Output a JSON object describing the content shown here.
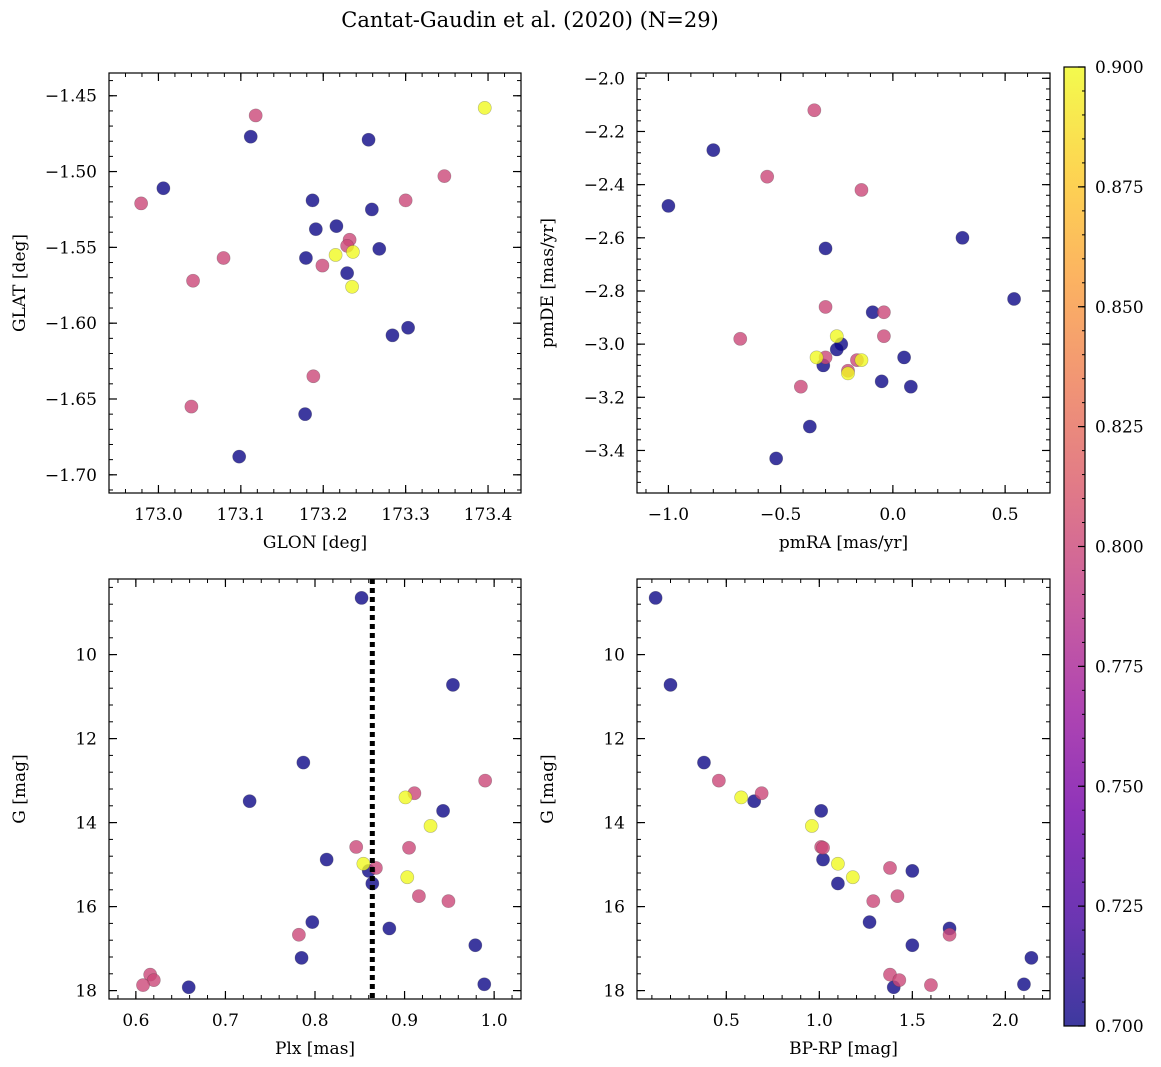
{
  "figure": {
    "suptitle": "Cantat-Gaudin et al. (2020) (N=29)"
  },
  "colormap": {
    "name": "plasma",
    "stops": [
      "#0d0887",
      "#46039f",
      "#7201a8",
      "#9c179e",
      "#bd3786",
      "#d8576b",
      "#ed7953",
      "#fb9f3a",
      "#fdca26",
      "#f0f921"
    ],
    "clim": [
      0.7,
      0.9
    ],
    "tick_labels": [
      "0.700",
      "0.725",
      "0.750",
      "0.775",
      "0.800",
      "0.825",
      "0.850",
      "0.875",
      "0.900"
    ],
    "tick_values": [
      0.7,
      0.725,
      0.75,
      0.775,
      0.8,
      0.825,
      0.85,
      0.875,
      0.9
    ]
  },
  "chart_data": [
    {
      "type": "scatter",
      "xlabel": "GLON [deg]",
      "ylabel": "GLAT [deg]",
      "xlim": [
        172.94,
        173.44
      ],
      "ylim": [
        -1.712,
        -1.435
      ],
      "xticks": [
        173.0,
        173.1,
        173.2,
        173.3,
        173.4
      ],
      "xtick_labels": [
        "173.0",
        "173.1",
        "173.2",
        "173.3",
        "173.4"
      ],
      "yticks": [
        -1.45,
        -1.5,
        -1.55,
        -1.6,
        -1.65,
        -1.7
      ],
      "ytick_labels": [
        "−1.45",
        "−1.50",
        "−1.55",
        "−1.60",
        "−1.65",
        "−1.70"
      ],
      "points": [
        {
          "x": 173.006,
          "y": -1.511,
          "c": 0.7
        },
        {
          "x": 173.112,
          "y": -1.477,
          "c": 0.7
        },
        {
          "x": 173.255,
          "y": -1.479,
          "c": 0.7
        },
        {
          "x": 173.187,
          "y": -1.519,
          "c": 0.7
        },
        {
          "x": 173.191,
          "y": -1.538,
          "c": 0.7
        },
        {
          "x": 173.216,
          "y": -1.536,
          "c": 0.7
        },
        {
          "x": 173.259,
          "y": -1.525,
          "c": 0.7
        },
        {
          "x": 173.179,
          "y": -1.557,
          "c": 0.7
        },
        {
          "x": 173.229,
          "y": -1.567,
          "c": 0.7
        },
        {
          "x": 173.268,
          "y": -1.551,
          "c": 0.7
        },
        {
          "x": 173.284,
          "y": -1.608,
          "c": 0.7
        },
        {
          "x": 173.303,
          "y": -1.603,
          "c": 0.7
        },
        {
          "x": 173.178,
          "y": -1.66,
          "c": 0.7
        },
        {
          "x": 173.098,
          "y": -1.688,
          "c": 0.7
        },
        {
          "x": 172.979,
          "y": -1.521,
          "c": 0.8
        },
        {
          "x": 173.118,
          "y": -1.463,
          "c": 0.8
        },
        {
          "x": 173.042,
          "y": -1.572,
          "c": 0.8
        },
        {
          "x": 173.079,
          "y": -1.557,
          "c": 0.8
        },
        {
          "x": 173.04,
          "y": -1.655,
          "c": 0.8
        },
        {
          "x": 173.188,
          "y": -1.635,
          "c": 0.8
        },
        {
          "x": 173.199,
          "y": -1.562,
          "c": 0.8
        },
        {
          "x": 173.232,
          "y": -1.545,
          "c": 0.8
        },
        {
          "x": 173.229,
          "y": -1.549,
          "c": 0.8
        },
        {
          "x": 173.3,
          "y": -1.519,
          "c": 0.8
        },
        {
          "x": 173.347,
          "y": -1.503,
          "c": 0.8
        },
        {
          "x": 173.396,
          "y": -1.458,
          "c": 0.9
        },
        {
          "x": 173.215,
          "y": -1.555,
          "c": 0.9
        },
        {
          "x": 173.236,
          "y": -1.553,
          "c": 0.9
        },
        {
          "x": 173.235,
          "y": -1.576,
          "c": 0.9
        }
      ]
    },
    {
      "type": "scatter",
      "xlabel": "pmRA [mas/yr]",
      "ylabel": "pmDE [mas/yr]",
      "xlim": [
        -1.14,
        0.7
      ],
      "ylim": [
        -3.56,
        -1.98
      ],
      "xticks": [
        -1.0,
        -0.5,
        0.0,
        0.5
      ],
      "xtick_labels": [
        "−1.0",
        "−0.5",
        "0.0",
        "0.5"
      ],
      "yticks": [
        -2.0,
        -2.2,
        -2.4,
        -2.6,
        -2.8,
        -3.0,
        -3.2,
        -3.4
      ],
      "ytick_labels": [
        "−2.0",
        "−2.2",
        "−2.4",
        "−2.6",
        "−2.8",
        "−3.0",
        "−3.2",
        "−3.4"
      ],
      "points": [
        {
          "x": -1.0,
          "y": -2.48,
          "c": 0.7
        },
        {
          "x": -0.8,
          "y": -2.27,
          "c": 0.7
        },
        {
          "x": -0.3,
          "y": -2.64,
          "c": 0.7
        },
        {
          "x": 0.31,
          "y": -2.6,
          "c": 0.7
        },
        {
          "x": 0.54,
          "y": -2.83,
          "c": 0.7
        },
        {
          "x": -0.09,
          "y": -2.88,
          "c": 0.7
        },
        {
          "x": -0.23,
          "y": -3.0,
          "c": 0.7
        },
        {
          "x": -0.25,
          "y": -3.02,
          "c": 0.7
        },
        {
          "x": -0.31,
          "y": -3.08,
          "c": 0.7
        },
        {
          "x": 0.05,
          "y": -3.05,
          "c": 0.7
        },
        {
          "x": -0.05,
          "y": -3.14,
          "c": 0.7
        },
        {
          "x": 0.08,
          "y": -3.16,
          "c": 0.7
        },
        {
          "x": -0.37,
          "y": -3.31,
          "c": 0.7
        },
        {
          "x": -0.52,
          "y": -3.43,
          "c": 0.7
        },
        {
          "x": -0.35,
          "y": -2.12,
          "c": 0.8
        },
        {
          "x": -0.56,
          "y": -2.37,
          "c": 0.8
        },
        {
          "x": -0.14,
          "y": -2.42,
          "c": 0.8
        },
        {
          "x": -0.68,
          "y": -2.98,
          "c": 0.8
        },
        {
          "x": -0.3,
          "y": -2.86,
          "c": 0.8
        },
        {
          "x": -0.04,
          "y": -2.88,
          "c": 0.8
        },
        {
          "x": -0.04,
          "y": -2.97,
          "c": 0.8
        },
        {
          "x": -0.3,
          "y": -3.05,
          "c": 0.8
        },
        {
          "x": -0.16,
          "y": -3.06,
          "c": 0.8
        },
        {
          "x": -0.2,
          "y": -3.1,
          "c": 0.8
        },
        {
          "x": -0.41,
          "y": -3.16,
          "c": 0.8
        },
        {
          "x": -0.25,
          "y": -2.97,
          "c": 0.9
        },
        {
          "x": -0.34,
          "y": -3.05,
          "c": 0.9
        },
        {
          "x": -0.14,
          "y": -3.06,
          "c": 0.9
        },
        {
          "x": -0.2,
          "y": -3.11,
          "c": 0.9
        }
      ]
    },
    {
      "type": "scatter",
      "xlabel": "Plx [mas]",
      "ylabel": "G [mag]",
      "xlim": [
        0.57,
        1.03
      ],
      "ylim": [
        18.2,
        8.2
      ],
      "y_inverted": true,
      "vline": {
        "x": 0.864,
        "style": "dotted",
        "color": "#000000"
      },
      "xticks": [
        0.6,
        0.7,
        0.8,
        0.9,
        1.0
      ],
      "xtick_labels": [
        "0.6",
        "0.7",
        "0.8",
        "0.9",
        "1.0"
      ],
      "yticks": [
        10,
        12,
        14,
        16,
        18
      ],
      "ytick_labels": [
        "10",
        "12",
        "14",
        "16",
        "18"
      ],
      "points": [
        {
          "x": 0.852,
          "y": 8.65,
          "c": 0.7
        },
        {
          "x": 0.954,
          "y": 10.72,
          "c": 0.7
        },
        {
          "x": 0.787,
          "y": 12.57,
          "c": 0.7
        },
        {
          "x": 0.727,
          "y": 13.49,
          "c": 0.7
        },
        {
          "x": 0.943,
          "y": 13.72,
          "c": 0.7
        },
        {
          "x": 0.813,
          "y": 14.88,
          "c": 0.7
        },
        {
          "x": 0.86,
          "y": 15.15,
          "c": 0.7
        },
        {
          "x": 0.864,
          "y": 15.45,
          "c": 0.7
        },
        {
          "x": 0.797,
          "y": 16.37,
          "c": 0.7
        },
        {
          "x": 0.883,
          "y": 16.52,
          "c": 0.7
        },
        {
          "x": 0.979,
          "y": 16.92,
          "c": 0.7
        },
        {
          "x": 0.785,
          "y": 17.22,
          "c": 0.7
        },
        {
          "x": 0.659,
          "y": 17.92,
          "c": 0.7
        },
        {
          "x": 0.989,
          "y": 17.85,
          "c": 0.7
        },
        {
          "x": 0.99,
          "y": 13.0,
          "c": 0.8
        },
        {
          "x": 0.911,
          "y": 13.3,
          "c": 0.8
        },
        {
          "x": 0.846,
          "y": 14.58,
          "c": 0.8
        },
        {
          "x": 0.905,
          "y": 14.6,
          "c": 0.8
        },
        {
          "x": 0.868,
          "y": 15.08,
          "c": 0.8
        },
        {
          "x": 0.916,
          "y": 15.75,
          "c": 0.8
        },
        {
          "x": 0.949,
          "y": 15.87,
          "c": 0.8
        },
        {
          "x": 0.782,
          "y": 16.67,
          "c": 0.8
        },
        {
          "x": 0.616,
          "y": 17.62,
          "c": 0.8
        },
        {
          "x": 0.62,
          "y": 17.75,
          "c": 0.8
        },
        {
          "x": 0.608,
          "y": 17.87,
          "c": 0.8
        },
        {
          "x": 0.901,
          "y": 13.4,
          "c": 0.9
        },
        {
          "x": 0.929,
          "y": 14.08,
          "c": 0.9
        },
        {
          "x": 0.854,
          "y": 14.98,
          "c": 0.9
        },
        {
          "x": 0.903,
          "y": 15.3,
          "c": 0.9
        }
      ]
    },
    {
      "type": "scatter",
      "xlabel": "BP-RP [mag]",
      "ylabel": "G [mag]",
      "xlim": [
        0.02,
        2.24
      ],
      "ylim": [
        18.2,
        8.2
      ],
      "y_inverted": true,
      "xticks": [
        0.5,
        1.0,
        1.5,
        2.0
      ],
      "xtick_labels": [
        "0.5",
        "1.0",
        "1.5",
        "2.0"
      ],
      "yticks": [
        10,
        12,
        14,
        16,
        18
      ],
      "ytick_labels": [
        "10",
        "12",
        "14",
        "16",
        "18"
      ],
      "points": [
        {
          "x": 0.12,
          "y": 8.65,
          "c": 0.7
        },
        {
          "x": 0.2,
          "y": 10.72,
          "c": 0.7
        },
        {
          "x": 0.38,
          "y": 12.57,
          "c": 0.7
        },
        {
          "x": 0.65,
          "y": 13.49,
          "c": 0.7
        },
        {
          "x": 1.01,
          "y": 13.72,
          "c": 0.7
        },
        {
          "x": 1.02,
          "y": 14.88,
          "c": 0.7
        },
        {
          "x": 1.5,
          "y": 15.15,
          "c": 0.7
        },
        {
          "x": 1.1,
          "y": 15.45,
          "c": 0.7
        },
        {
          "x": 1.27,
          "y": 16.37,
          "c": 0.7
        },
        {
          "x": 1.7,
          "y": 16.52,
          "c": 0.7
        },
        {
          "x": 1.5,
          "y": 16.92,
          "c": 0.7
        },
        {
          "x": 2.14,
          "y": 17.22,
          "c": 0.7
        },
        {
          "x": 1.4,
          "y": 17.92,
          "c": 0.7
        },
        {
          "x": 2.1,
          "y": 17.85,
          "c": 0.7
        },
        {
          "x": 0.46,
          "y": 13.0,
          "c": 0.8
        },
        {
          "x": 0.69,
          "y": 13.3,
          "c": 0.8
        },
        {
          "x": 1.01,
          "y": 14.58,
          "c": 0.8
        },
        {
          "x": 1.02,
          "y": 14.6,
          "c": 0.8
        },
        {
          "x": 1.38,
          "y": 15.08,
          "c": 0.8
        },
        {
          "x": 1.42,
          "y": 15.75,
          "c": 0.8
        },
        {
          "x": 1.29,
          "y": 15.87,
          "c": 0.8
        },
        {
          "x": 1.7,
          "y": 16.67,
          "c": 0.8
        },
        {
          "x": 1.38,
          "y": 17.62,
          "c": 0.8
        },
        {
          "x": 1.43,
          "y": 17.75,
          "c": 0.8
        },
        {
          "x": 1.6,
          "y": 17.87,
          "c": 0.8
        },
        {
          "x": 0.58,
          "y": 13.4,
          "c": 0.9
        },
        {
          "x": 0.96,
          "y": 14.08,
          "c": 0.9
        },
        {
          "x": 1.1,
          "y": 14.98,
          "c": 0.9
        },
        {
          "x": 1.18,
          "y": 15.3,
          "c": 0.9
        }
      ]
    }
  ]
}
